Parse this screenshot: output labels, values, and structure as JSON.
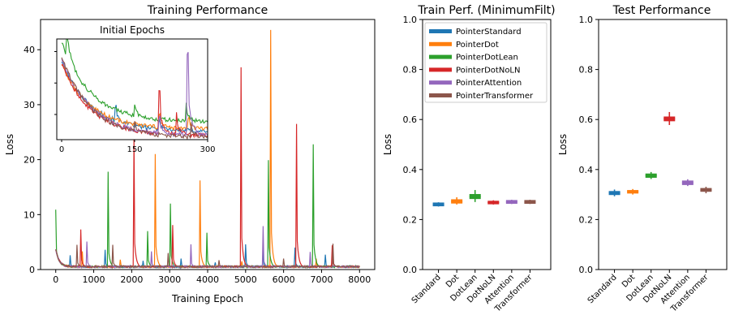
{
  "colors": [
    "#1f77b4",
    "#ff7f0e",
    "#2ca02c",
    "#d62728",
    "#9467bd",
    "#8c564b"
  ],
  "chart_data": [
    {
      "type": "line",
      "title": "Training Performance",
      "xlabel": "Training Epoch",
      "ylabel": "Loss",
      "xlim": [
        -400,
        8400
      ],
      "ylim": [
        0,
        45.5
      ],
      "xticks": [
        0,
        1000,
        2000,
        3000,
        4000,
        5000,
        6000,
        7000,
        8000
      ],
      "yticks": [
        0,
        10,
        20,
        30,
        40
      ],
      "series": [
        {
          "name": "PointerStandard",
          "spikes": [
            [
              380,
              2.6
            ],
            [
              1300,
              3.6
            ],
            [
              2300,
              1.6
            ],
            [
              3300,
              2.0
            ],
            [
              4200,
              1.3
            ],
            [
              5000,
              4.6
            ],
            [
              5450,
              3.5
            ],
            [
              6300,
              4.0
            ],
            [
              7100,
              2.7
            ]
          ]
        },
        {
          "name": "PointerDot",
          "spikes": [
            [
              700,
              3.3
            ],
            [
              1700,
              1.8
            ],
            [
              2620,
              21.0
            ],
            [
              3800,
              16.2
            ],
            [
              4900,
              1.5
            ],
            [
              5650,
              43.6
            ],
            [
              6850,
              2.0
            ]
          ]
        },
        {
          "name": "PointerDotLean",
          "spikes": [
            [
              0,
              10.9
            ],
            [
              1370,
              17.8
            ],
            [
              2420,
              7.0
            ],
            [
              3020,
              12.0
            ],
            [
              3980,
              6.7
            ],
            [
              5600,
              19.9
            ],
            [
              6780,
              22.8
            ]
          ]
        },
        {
          "name": "PointerDotNoLN",
          "spikes": [
            [
              660,
              7.3
            ],
            [
              2060,
              24.0
            ],
            [
              3080,
              8.1
            ],
            [
              4870,
              36.8
            ],
            [
              6340,
              26.5
            ],
            [
              7280,
              4.4
            ]
          ]
        },
        {
          "name": "PointerAttention",
          "spikes": [
            [
              820,
              5.1
            ],
            [
              2520,
              3.3
            ],
            [
              3550,
              4.6
            ],
            [
              5450,
              7.9
            ],
            [
              6700,
              3.2
            ]
          ]
        },
        {
          "name": "PointerTransformer",
          "spikes": [
            [
              560,
              4.5
            ],
            [
              1500,
              4.5
            ],
            [
              2950,
              3.0
            ],
            [
              4300,
              1.7
            ],
            [
              6000,
              2.0
            ],
            [
              7290,
              4.7
            ]
          ]
        }
      ],
      "inset": {
        "title": "Initial Epochs",
        "xlim": [
          -10,
          300
        ],
        "ylim": [
          26,
          42
        ],
        "xticks": [
          0,
          150,
          300
        ],
        "series": [
          {
            "name": "PointerStandard",
            "start": 38.5,
            "end": 27.3
          },
          {
            "name": "PointerDot",
            "start": 38.0,
            "end": 27.6
          },
          {
            "name": "PointerDotLean",
            "start": 41.5,
            "end": 28.8
          },
          {
            "name": "PointerDotNoLN",
            "start": 38.0,
            "end": 26.6
          },
          {
            "name": "PointerAttention",
            "start": 39.0,
            "end": 26.6
          },
          {
            "name": "PointerTransformer",
            "start": 39.2,
            "end": 26.3
          }
        ]
      }
    },
    {
      "type": "box",
      "title": "Train Perf. (MinimumFilt)",
      "ylabel": "Loss",
      "ylim": [
        0,
        1.0
      ],
      "yticks": [
        "0.0",
        "0.2",
        "0.4",
        "0.6",
        "0.8",
        "1.0"
      ],
      "categories": [
        "Standard",
        "Dot",
        "DotLean",
        "DotNoLN",
        "Attention",
        "Transformer"
      ],
      "series": [
        {
          "name": "PointerStandard",
          "median": 0.26,
          "q1": 0.253,
          "q3": 0.268,
          "min": 0.252,
          "max": 0.269
        },
        {
          "name": "PointerDot",
          "median": 0.272,
          "q1": 0.264,
          "q3": 0.281,
          "min": 0.26,
          "max": 0.289
        },
        {
          "name": "PointerDotLean",
          "median": 0.292,
          "q1": 0.282,
          "q3": 0.302,
          "min": 0.27,
          "max": 0.318
        },
        {
          "name": "PointerDotNoLN",
          "median": 0.268,
          "q1": 0.261,
          "q3": 0.275,
          "min": 0.26,
          "max": 0.277
        },
        {
          "name": "PointerAttention",
          "median": 0.27,
          "q1": 0.263,
          "q3": 0.278,
          "min": 0.262,
          "max": 0.279
        },
        {
          "name": "PointerTransformer",
          "median": 0.27,
          "q1": 0.263,
          "q3": 0.278,
          "min": 0.262,
          "max": 0.279
        }
      ],
      "legend_placement": "top-right"
    },
    {
      "type": "box",
      "title": "Test Performance",
      "ylabel": "Loss",
      "ylim": [
        0,
        1.0
      ],
      "yticks": [
        "0.0",
        "0.2",
        "0.4",
        "0.6",
        "0.8",
        "1.0"
      ],
      "categories": [
        "Standard",
        "Dot",
        "DotLean",
        "DotNoLN",
        "Attention",
        "Transformer"
      ],
      "series": [
        {
          "name": "PointerStandard",
          "median": 0.306,
          "q1": 0.298,
          "q3": 0.314,
          "min": 0.293,
          "max": 0.32
        },
        {
          "name": "PointerDot",
          "median": 0.312,
          "q1": 0.304,
          "q3": 0.318,
          "min": 0.3,
          "max": 0.322
        },
        {
          "name": "PointerDotLean",
          "median": 0.376,
          "q1": 0.367,
          "q3": 0.384,
          "min": 0.362,
          "max": 0.39
        },
        {
          "name": "PointerDotNoLN",
          "median": 0.603,
          "q1": 0.593,
          "q3": 0.612,
          "min": 0.578,
          "max": 0.63
        },
        {
          "name": "PointerAttention",
          "median": 0.347,
          "q1": 0.338,
          "q3": 0.356,
          "min": 0.334,
          "max": 0.361
        },
        {
          "name": "PointerTransformer",
          "median": 0.318,
          "q1": 0.311,
          "q3": 0.326,
          "min": 0.305,
          "max": 0.331
        }
      ]
    }
  ]
}
